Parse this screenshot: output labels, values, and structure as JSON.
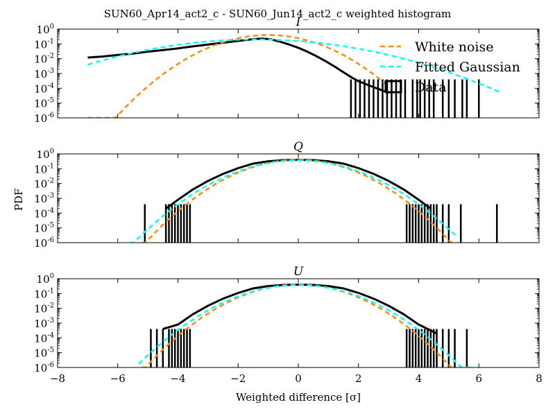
{
  "figure": {
    "suptitle": "SUN60_Apr14_act2_c - SUN60_Jun14_act2_c weighted histogram",
    "ylabel": "PDF",
    "xlabel": "Weighted difference [σ]"
  },
  "legend": {
    "entries": [
      {
        "label": "White noise",
        "style": "dashed",
        "color": "#ff8c00"
      },
      {
        "label": "Fitted Gaussian",
        "style": "dashed",
        "color": "#00ffff"
      },
      {
        "label": "Data",
        "style": "box",
        "color": "#000000"
      }
    ],
    "placement": "upper-right of top panel"
  },
  "chart_data": [
    {
      "type": "line",
      "title": "I",
      "xlim": [
        -8,
        8
      ],
      "ylim": [
        1e-06,
        1
      ],
      "yscale": "log",
      "xticks": [
        -8,
        -6,
        -4,
        -2,
        0,
        2,
        4,
        6,
        8
      ],
      "yticks": [
        {
          "base": "10",
          "exp": "0"
        },
        {
          "base": "10",
          "exp": "-1"
        },
        {
          "base": "10",
          "exp": "-2"
        },
        {
          "base": "10",
          "exp": "-3"
        },
        {
          "base": "10",
          "exp": "-4"
        },
        {
          "base": "10",
          "exp": "-5"
        },
        {
          "base": "10",
          "exp": "-6"
        }
      ],
      "grid": false,
      "series": [
        {
          "name": "White noise",
          "color": "#ff8c00",
          "dash": true,
          "model": {
            "mu": -1.0,
            "sigma": 1.0,
            "amp": 0.399
          },
          "xrange": [
            -7.0,
            3.0
          ]
        },
        {
          "name": "Fitted Gaussian",
          "color": "#00ffff",
          "dash": true,
          "model": {
            "mu": -1.4,
            "sigma": 2.0,
            "amp": 0.2
          },
          "xrange": [
            -7.0,
            6.7
          ]
        },
        {
          "name": "Data",
          "color": "#000000",
          "dash": false,
          "points": [
            [
              -7.0,
              0.012
            ],
            [
              -6.5,
              0.014
            ],
            [
              -6.0,
              0.018
            ],
            [
              -5.5,
              0.022
            ],
            [
              -5.0,
              0.03
            ],
            [
              -4.5,
              0.038
            ],
            [
              -4.0,
              0.05
            ],
            [
              -3.5,
              0.068
            ],
            [
              -3.0,
              0.09
            ],
            [
              -2.5,
              0.12
            ],
            [
              -2.0,
              0.16
            ],
            [
              -1.5,
              0.21
            ],
            [
              -1.2,
              0.23
            ],
            [
              -0.9,
              0.2
            ],
            [
              -0.6,
              0.14
            ],
            [
              -0.3,
              0.09
            ],
            [
              0.0,
              0.055
            ],
            [
              0.3,
              0.03
            ],
            [
              0.6,
              0.015
            ],
            [
              0.9,
              0.007
            ],
            [
              1.2,
              0.003
            ],
            [
              1.5,
              0.0012
            ],
            [
              1.8,
              0.0005
            ],
            [
              2.0,
              0.0003
            ],
            [
              2.5,
              0.00012
            ],
            [
              3.0,
              5e-05
            ]
          ],
          "spikes": [
            1.75,
            1.9,
            2.05,
            2.2,
            2.35,
            2.5,
            2.65,
            2.8,
            2.95,
            3.1,
            3.25,
            3.4,
            3.55,
            3.8,
            3.95,
            4.05,
            4.2,
            4.35,
            4.5,
            4.8,
            5.0,
            5.2,
            5.45,
            5.6,
            6.0
          ]
        }
      ]
    },
    {
      "type": "line",
      "title": "Q",
      "xlim": [
        -8,
        8
      ],
      "ylim": [
        1e-06,
        1
      ],
      "yscale": "log",
      "xticks": [
        -8,
        -6,
        -4,
        -2,
        0,
        2,
        4,
        6,
        8
      ],
      "yticks": [
        {
          "base": "10",
          "exp": "0"
        },
        {
          "base": "10",
          "exp": "-1"
        },
        {
          "base": "10",
          "exp": "-2"
        },
        {
          "base": "10",
          "exp": "-3"
        },
        {
          "base": "10",
          "exp": "-4"
        },
        {
          "base": "10",
          "exp": "-5"
        },
        {
          "base": "10",
          "exp": "-6"
        }
      ],
      "grid": false,
      "series": [
        {
          "name": "White noise",
          "color": "#ff8c00",
          "dash": true,
          "model": {
            "mu": 0.0,
            "sigma": 1.0,
            "amp": 0.399
          },
          "xrange": [
            -5.2,
            5.2
          ]
        },
        {
          "name": "Fitted Gaussian",
          "color": "#00ffff",
          "dash": true,
          "model": {
            "mu": 0.0,
            "sigma": 1.08,
            "amp": 0.37
          },
          "xrange": [
            -5.6,
            5.3
          ]
        },
        {
          "name": "Data",
          "color": "#000000",
          "dash": false,
          "points": [
            [
              -4.4,
              0.0002
            ],
            [
              -4.0,
              0.0008
            ],
            [
              -3.5,
              0.004
            ],
            [
              -3.0,
              0.015
            ],
            [
              -2.5,
              0.045
            ],
            [
              -2.0,
              0.11
            ],
            [
              -1.5,
              0.22
            ],
            [
              -1.0,
              0.32
            ],
            [
              -0.5,
              0.38
            ],
            [
              0.0,
              0.4
            ],
            [
              0.5,
              0.38
            ],
            [
              1.0,
              0.32
            ],
            [
              1.5,
              0.22
            ],
            [
              2.0,
              0.11
            ],
            [
              2.5,
              0.045
            ],
            [
              3.0,
              0.015
            ],
            [
              3.5,
              0.004
            ],
            [
              4.0,
              0.0008
            ],
            [
              4.4,
              0.0002
            ]
          ],
          "spikes": [
            -5.1,
            -4.4,
            -4.3,
            -4.2,
            -4.1,
            -4.0,
            -3.9,
            -3.8,
            -3.7,
            -3.6,
            3.6,
            3.7,
            3.8,
            3.9,
            4.0,
            4.1,
            4.2,
            4.3,
            4.4,
            4.5,
            4.6,
            4.8,
            5.0,
            5.4,
            6.6
          ]
        }
      ]
    },
    {
      "type": "line",
      "title": "U",
      "xlim": [
        -8,
        8
      ],
      "ylim": [
        1e-06,
        1
      ],
      "yscale": "log",
      "xticks": [
        -8,
        -6,
        -4,
        -2,
        0,
        2,
        4,
        6,
        8
      ],
      "yticks": [
        {
          "base": "10",
          "exp": "0"
        },
        {
          "base": "10",
          "exp": "-1"
        },
        {
          "base": "10",
          "exp": "-2"
        },
        {
          "base": "10",
          "exp": "-3"
        },
        {
          "base": "10",
          "exp": "-4"
        },
        {
          "base": "10",
          "exp": "-5"
        },
        {
          "base": "10",
          "exp": "-6"
        }
      ],
      "grid": false,
      "series": [
        {
          "name": "White noise",
          "color": "#ff8c00",
          "dash": true,
          "model": {
            "mu": 0.0,
            "sigma": 1.0,
            "amp": 0.399
          },
          "xrange": [
            -5.2,
            5.2
          ]
        },
        {
          "name": "Fitted Gaussian",
          "color": "#00ffff",
          "dash": true,
          "model": {
            "mu": 0.0,
            "sigma": 1.07,
            "amp": 0.372
          },
          "xrange": [
            -5.3,
            5.8
          ]
        },
        {
          "name": "Data",
          "color": "#000000",
          "dash": false,
          "points": [
            [
              -4.5,
              0.0004
            ],
            [
              -4.0,
              0.0008
            ],
            [
              -3.5,
              0.004
            ],
            [
              -3.0,
              0.015
            ],
            [
              -2.5,
              0.045
            ],
            [
              -2.0,
              0.11
            ],
            [
              -1.5,
              0.22
            ],
            [
              -1.0,
              0.32
            ],
            [
              -0.5,
              0.38
            ],
            [
              0.0,
              0.4
            ],
            [
              0.5,
              0.38
            ],
            [
              1.0,
              0.32
            ],
            [
              1.5,
              0.22
            ],
            [
              2.0,
              0.11
            ],
            [
              2.5,
              0.045
            ],
            [
              3.0,
              0.015
            ],
            [
              3.5,
              0.004
            ],
            [
              4.0,
              0.0008
            ],
            [
              4.6,
              0.0002
            ]
          ],
          "spikes": [
            -4.9,
            -4.7,
            -4.5,
            -4.3,
            -4.2,
            -4.1,
            -4.0,
            -3.9,
            -3.8,
            -3.7,
            -3.6,
            3.6,
            3.7,
            3.8,
            3.9,
            4.0,
            4.1,
            4.2,
            4.3,
            4.4,
            4.5,
            4.6,
            4.8,
            5.0,
            5.2,
            5.6
          ]
        }
      ]
    }
  ]
}
